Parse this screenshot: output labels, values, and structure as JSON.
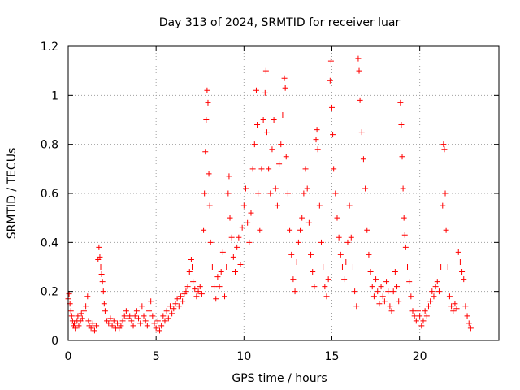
{
  "chart_data": {
    "type": "scatter",
    "title": "Day 313 of 2024, SRMTID for receiver luar",
    "xlabel": "GPS time / hours",
    "ylabel": "SRMTID / TECUs",
    "xlim": [
      0,
      24.5
    ],
    "ylim": [
      0,
      1.2
    ],
    "grid": true,
    "marker": "+",
    "marker_color": "#ff0000",
    "x_ticks": [
      0,
      5,
      10,
      15,
      20
    ],
    "x_tick_labels": [
      "0",
      "5",
      "10",
      "15",
      "20"
    ],
    "y_ticks": [
      0,
      0.2,
      0.4,
      0.6,
      0.8,
      1.0,
      1.2
    ],
    "y_tick_labels": [
      "0",
      "0.2",
      "0.4",
      "0.6",
      "0.8",
      "1",
      "1.2"
    ],
    "series": [
      {
        "name": "luar",
        "points": [
          [
            0.0,
            0.17
          ],
          [
            0.05,
            0.19
          ],
          [
            0.1,
            0.15
          ],
          [
            0.15,
            0.12
          ],
          [
            0.2,
            0.1
          ],
          [
            0.25,
            0.08
          ],
          [
            0.3,
            0.06
          ],
          [
            0.35,
            0.07
          ],
          [
            0.4,
            0.05
          ],
          [
            0.5,
            0.08
          ],
          [
            0.55,
            0.1
          ],
          [
            0.6,
            0.06
          ],
          [
            0.7,
            0.08
          ],
          [
            0.75,
            0.11
          ],
          [
            0.8,
            0.09
          ],
          [
            0.9,
            0.12
          ],
          [
            1.0,
            0.14
          ],
          [
            1.1,
            0.18
          ],
          [
            1.15,
            0.08
          ],
          [
            1.2,
            0.06
          ],
          [
            1.3,
            0.05
          ],
          [
            1.4,
            0.07
          ],
          [
            1.5,
            0.04
          ],
          [
            1.6,
            0.06
          ],
          [
            1.7,
            0.33
          ],
          [
            1.75,
            0.38
          ],
          [
            1.8,
            0.34
          ],
          [
            1.85,
            0.3
          ],
          [
            1.9,
            0.27
          ],
          [
            1.95,
            0.24
          ],
          [
            2.0,
            0.2
          ],
          [
            2.05,
            0.15
          ],
          [
            2.1,
            0.12
          ],
          [
            2.2,
            0.08
          ],
          [
            2.3,
            0.07
          ],
          [
            2.4,
            0.09
          ],
          [
            2.5,
            0.06
          ],
          [
            2.6,
            0.08
          ],
          [
            2.7,
            0.05
          ],
          [
            2.8,
            0.07
          ],
          [
            2.9,
            0.05
          ],
          [
            3.0,
            0.06
          ],
          [
            3.1,
            0.08
          ],
          [
            3.2,
            0.1
          ],
          [
            3.3,
            0.12
          ],
          [
            3.4,
            0.09
          ],
          [
            3.5,
            0.1
          ],
          [
            3.6,
            0.08
          ],
          [
            3.7,
            0.06
          ],
          [
            3.8,
            0.1
          ],
          [
            3.9,
            0.12
          ],
          [
            4.0,
            0.09
          ],
          [
            4.1,
            0.07
          ],
          [
            4.2,
            0.14
          ],
          [
            4.3,
            0.1
          ],
          [
            4.4,
            0.08
          ],
          [
            4.5,
            0.06
          ],
          [
            4.6,
            0.12
          ],
          [
            4.7,
            0.16
          ],
          [
            4.8,
            0.1
          ],
          [
            4.9,
            0.07
          ],
          [
            5.0,
            0.05
          ],
          [
            5.1,
            0.08
          ],
          [
            5.2,
            0.04
          ],
          [
            5.3,
            0.06
          ],
          [
            5.4,
            0.1
          ],
          [
            5.5,
            0.08
          ],
          [
            5.6,
            0.12
          ],
          [
            5.7,
            0.09
          ],
          [
            5.8,
            0.14
          ],
          [
            5.9,
            0.11
          ],
          [
            6.0,
            0.13
          ],
          [
            6.1,
            0.15
          ],
          [
            6.2,
            0.17
          ],
          [
            6.3,
            0.14
          ],
          [
            6.4,
            0.18
          ],
          [
            6.5,
            0.16
          ],
          [
            6.6,
            0.19
          ],
          [
            6.7,
            0.2
          ],
          [
            6.8,
            0.22
          ],
          [
            6.9,
            0.28
          ],
          [
            7.0,
            0.33
          ],
          [
            7.05,
            0.3
          ],
          [
            7.1,
            0.24
          ],
          [
            7.2,
            0.21
          ],
          [
            7.3,
            0.18
          ],
          [
            7.4,
            0.2
          ],
          [
            7.5,
            0.22
          ],
          [
            7.6,
            0.19
          ],
          [
            7.7,
            0.45
          ],
          [
            7.75,
            0.6
          ],
          [
            7.8,
            0.77
          ],
          [
            7.85,
            0.9
          ],
          [
            7.9,
            1.02
          ],
          [
            7.95,
            0.97
          ],
          [
            8.0,
            0.68
          ],
          [
            8.05,
            0.55
          ],
          [
            8.1,
            0.4
          ],
          [
            8.2,
            0.3
          ],
          [
            8.3,
            0.22
          ],
          [
            8.4,
            0.17
          ],
          [
            8.5,
            0.26
          ],
          [
            8.6,
            0.22
          ],
          [
            8.7,
            0.28
          ],
          [
            8.8,
            0.36
          ],
          [
            8.9,
            0.18
          ],
          [
            9.0,
            0.3
          ],
          [
            9.1,
            0.6
          ],
          [
            9.15,
            0.67
          ],
          [
            9.2,
            0.5
          ],
          [
            9.3,
            0.42
          ],
          [
            9.4,
            0.34
          ],
          [
            9.5,
            0.28
          ],
          [
            9.6,
            0.38
          ],
          [
            9.7,
            0.42
          ],
          [
            9.8,
            0.31
          ],
          [
            9.9,
            0.46
          ],
          [
            10.0,
            0.55
          ],
          [
            10.1,
            0.62
          ],
          [
            10.2,
            0.48
          ],
          [
            10.3,
            0.4
          ],
          [
            10.4,
            0.52
          ],
          [
            10.5,
            0.7
          ],
          [
            10.6,
            0.8
          ],
          [
            10.7,
            1.02
          ],
          [
            10.75,
            0.88
          ],
          [
            10.8,
            0.6
          ],
          [
            10.9,
            0.45
          ],
          [
            11.0,
            0.7
          ],
          [
            11.1,
            0.9
          ],
          [
            11.2,
            1.01
          ],
          [
            11.25,
            1.1
          ],
          [
            11.3,
            0.85
          ],
          [
            11.4,
            0.7
          ],
          [
            11.5,
            0.6
          ],
          [
            11.6,
            0.78
          ],
          [
            11.7,
            0.9
          ],
          [
            11.8,
            0.62
          ],
          [
            11.9,
            0.55
          ],
          [
            12.0,
            0.72
          ],
          [
            12.1,
            0.8
          ],
          [
            12.2,
            0.92
          ],
          [
            12.3,
            1.07
          ],
          [
            12.35,
            1.03
          ],
          [
            12.4,
            0.75
          ],
          [
            12.5,
            0.6
          ],
          [
            12.6,
            0.45
          ],
          [
            12.7,
            0.35
          ],
          [
            12.8,
            0.25
          ],
          [
            12.9,
            0.2
          ],
          [
            13.0,
            0.32
          ],
          [
            13.1,
            0.4
          ],
          [
            13.2,
            0.45
          ],
          [
            13.3,
            0.5
          ],
          [
            13.4,
            0.6
          ],
          [
            13.5,
            0.7
          ],
          [
            13.6,
            0.62
          ],
          [
            13.7,
            0.48
          ],
          [
            13.8,
            0.35
          ],
          [
            13.9,
            0.28
          ],
          [
            14.0,
            0.22
          ],
          [
            14.1,
            0.82
          ],
          [
            14.15,
            0.86
          ],
          [
            14.2,
            0.78
          ],
          [
            14.3,
            0.55
          ],
          [
            14.4,
            0.4
          ],
          [
            14.5,
            0.3
          ],
          [
            14.6,
            0.22
          ],
          [
            14.7,
            0.18
          ],
          [
            14.8,
            0.25
          ],
          [
            14.9,
            1.06
          ],
          [
            14.95,
            1.14
          ],
          [
            15.0,
            0.95
          ],
          [
            15.05,
            0.84
          ],
          [
            15.1,
            0.7
          ],
          [
            15.2,
            0.6
          ],
          [
            15.3,
            0.5
          ],
          [
            15.4,
            0.42
          ],
          [
            15.5,
            0.35
          ],
          [
            15.6,
            0.3
          ],
          [
            15.7,
            0.25
          ],
          [
            15.8,
            0.32
          ],
          [
            15.9,
            0.4
          ],
          [
            16.0,
            0.55
          ],
          [
            16.1,
            0.42
          ],
          [
            16.2,
            0.3
          ],
          [
            16.3,
            0.2
          ],
          [
            16.4,
            0.14
          ],
          [
            16.5,
            1.15
          ],
          [
            16.55,
            1.1
          ],
          [
            16.6,
            0.98
          ],
          [
            16.7,
            0.85
          ],
          [
            16.8,
            0.74
          ],
          [
            16.9,
            0.62
          ],
          [
            17.0,
            0.45
          ],
          [
            17.1,
            0.35
          ],
          [
            17.2,
            0.28
          ],
          [
            17.3,
            0.22
          ],
          [
            17.4,
            0.18
          ],
          [
            17.5,
            0.25
          ],
          [
            17.6,
            0.2
          ],
          [
            17.7,
            0.15
          ],
          [
            17.8,
            0.22
          ],
          [
            17.9,
            0.18
          ],
          [
            18.0,
            0.16
          ],
          [
            18.1,
            0.24
          ],
          [
            18.2,
            0.2
          ],
          [
            18.3,
            0.14
          ],
          [
            18.4,
            0.12
          ],
          [
            18.5,
            0.2
          ],
          [
            18.6,
            0.28
          ],
          [
            18.7,
            0.22
          ],
          [
            18.8,
            0.16
          ],
          [
            18.9,
            0.97
          ],
          [
            18.95,
            0.88
          ],
          [
            19.0,
            0.75
          ],
          [
            19.05,
            0.62
          ],
          [
            19.1,
            0.5
          ],
          [
            19.15,
            0.43
          ],
          [
            19.2,
            0.38
          ],
          [
            19.3,
            0.3
          ],
          [
            19.4,
            0.24
          ],
          [
            19.5,
            0.18
          ],
          [
            19.6,
            0.12
          ],
          [
            19.7,
            0.1
          ],
          [
            19.8,
            0.08
          ],
          [
            19.9,
            0.12
          ],
          [
            20.0,
            0.1
          ],
          [
            20.1,
            0.06
          ],
          [
            20.2,
            0.08
          ],
          [
            20.3,
            0.12
          ],
          [
            20.4,
            0.1
          ],
          [
            20.5,
            0.14
          ],
          [
            20.6,
            0.16
          ],
          [
            20.7,
            0.2
          ],
          [
            20.8,
            0.18
          ],
          [
            20.9,
            0.22
          ],
          [
            21.0,
            0.24
          ],
          [
            21.1,
            0.2
          ],
          [
            21.2,
            0.3
          ],
          [
            21.3,
            0.55
          ],
          [
            21.35,
            0.8
          ],
          [
            21.4,
            0.78
          ],
          [
            21.45,
            0.6
          ],
          [
            21.5,
            0.45
          ],
          [
            21.6,
            0.3
          ],
          [
            21.7,
            0.18
          ],
          [
            21.8,
            0.14
          ],
          [
            21.9,
            0.12
          ],
          [
            22.0,
            0.15
          ],
          [
            22.1,
            0.13
          ],
          [
            22.2,
            0.36
          ],
          [
            22.3,
            0.32
          ],
          [
            22.4,
            0.28
          ],
          [
            22.5,
            0.25
          ],
          [
            22.6,
            0.14
          ],
          [
            22.7,
            0.1
          ],
          [
            22.8,
            0.07
          ],
          [
            22.9,
            0.05
          ]
        ]
      }
    ]
  }
}
